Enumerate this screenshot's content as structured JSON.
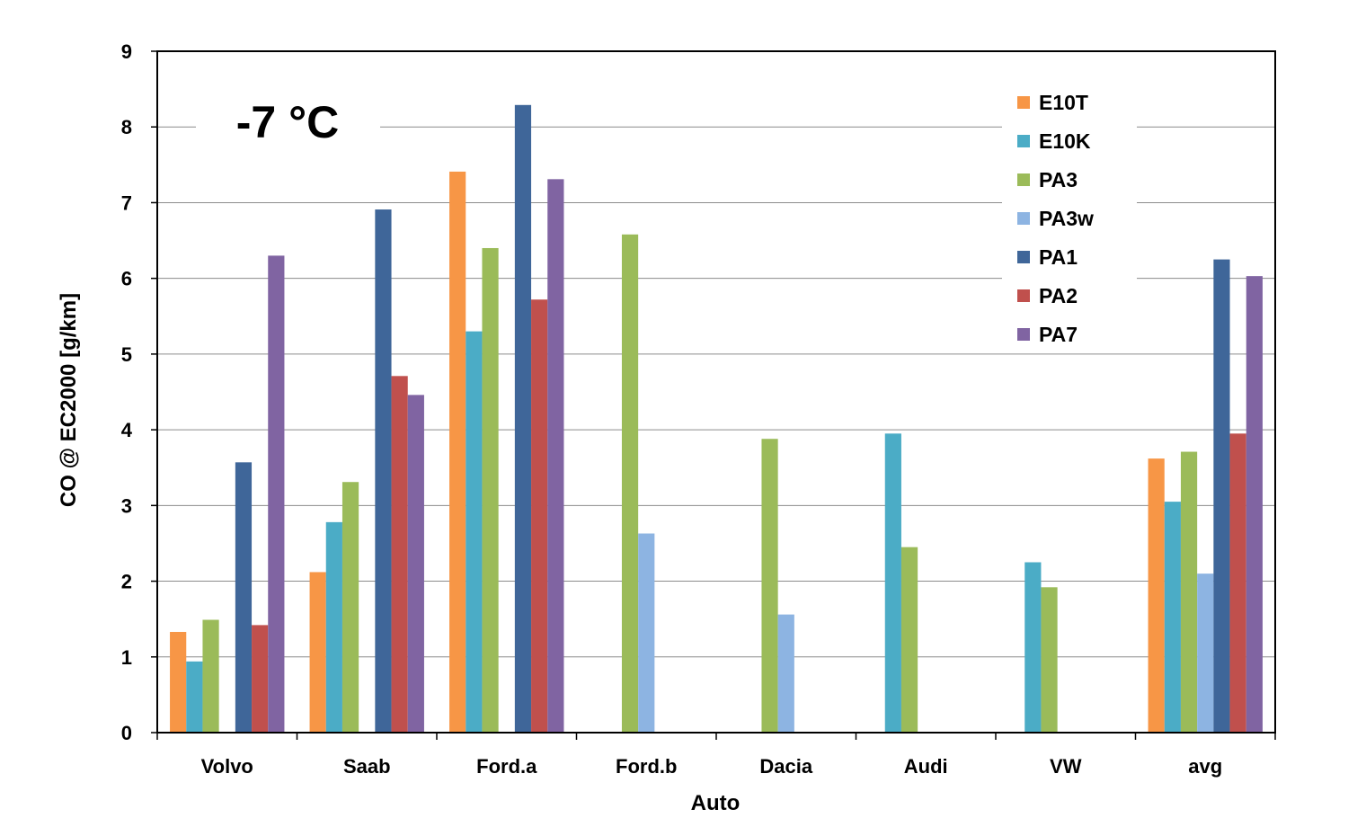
{
  "chart_data": {
    "type": "bar",
    "xlabel": "Auto",
    "ylabel": "CO @ EC2000 [g/km]",
    "annotation": "-7 °C",
    "ylim": [
      0,
      9
    ],
    "yticks": [
      0,
      1,
      2,
      3,
      4,
      5,
      6,
      7,
      8,
      9
    ],
    "grid": true,
    "legend_position": "top-right",
    "categories": [
      "Volvo",
      "Saab",
      "Ford.a",
      "Ford.b",
      "Dacia",
      "Audi",
      "VW",
      "avg"
    ],
    "series": [
      {
        "name": "E10T",
        "color": "#F79646",
        "values": [
          1.33,
          2.12,
          7.41,
          null,
          null,
          null,
          null,
          3.62
        ]
      },
      {
        "name": "E10K",
        "color": "#4BACC6",
        "values": [
          0.94,
          2.78,
          5.3,
          null,
          null,
          3.95,
          2.25,
          3.05
        ]
      },
      {
        "name": "PA3",
        "color": "#9BBB59",
        "values": [
          1.49,
          3.31,
          6.4,
          6.58,
          3.88,
          2.45,
          1.92,
          3.71
        ]
      },
      {
        "name": "PA3w",
        "color": "#8DB4E2",
        "values": [
          null,
          null,
          null,
          2.63,
          1.56,
          null,
          null,
          2.1
        ]
      },
      {
        "name": "PA1",
        "color": "#3F6699",
        "values": [
          3.57,
          6.91,
          8.29,
          null,
          null,
          null,
          null,
          6.25
        ]
      },
      {
        "name": "PA2",
        "color": "#C0504D",
        "values": [
          1.42,
          4.71,
          5.72,
          null,
          null,
          null,
          null,
          3.95
        ]
      },
      {
        "name": "PA7",
        "color": "#8064A2",
        "values": [
          6.3,
          4.46,
          7.31,
          null,
          null,
          null,
          null,
          6.03
        ]
      }
    ]
  }
}
